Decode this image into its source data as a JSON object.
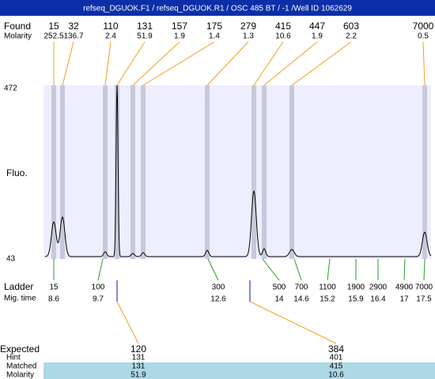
{
  "title": "refseq_DGUOK.F1 / refseq_DGUOK.R1 / OSC 485 BT / -1 /Well ID 1062629",
  "found": {
    "label": "Found",
    "molarity_label": "Molarity",
    "peaks": [
      {
        "size": "15",
        "molarity": "252.5"
      },
      {
        "size": "32",
        "molarity": "136.7"
      },
      {
        "size": "110",
        "molarity": "2.4"
      },
      {
        "size": "131",
        "molarity": "51.9"
      },
      {
        "size": "157",
        "molarity": "1.9"
      },
      {
        "size": "175",
        "molarity": "1.4"
      },
      {
        "size": "279",
        "molarity": "1.3"
      },
      {
        "size": "415",
        "molarity": "10.6"
      },
      {
        "size": "447",
        "molarity": "1.9"
      },
      {
        "size": "603",
        "molarity": "2.2"
      },
      {
        "size": "7000",
        "molarity": "0.5"
      }
    ]
  },
  "plot": {
    "ylabel": "Fluo.",
    "ytop": "472",
    "ybottom": "43"
  },
  "ladder": {
    "label": "Ladder",
    "mig_label": "Mig. time",
    "peaks": [
      {
        "size": "15",
        "time": "8.6"
      },
      {
        "size": "100",
        "time": "9.7"
      },
      {
        "size": "300",
        "time": "12.6"
      },
      {
        "size": "500",
        "time": "14"
      },
      {
        "size": "700",
        "time": "14.6"
      },
      {
        "size": "1100",
        "time": "15.2"
      },
      {
        "size": "1900",
        "time": "15.9"
      },
      {
        "size": "2900",
        "time": "16.4"
      },
      {
        "size": "4900",
        "time": "17"
      },
      {
        "size": "7000",
        "time": "17.5"
      }
    ]
  },
  "table": {
    "labels": [
      "Expected",
      "Hint",
      "Matched",
      "Molarity"
    ],
    "columns": [
      [
        "120",
        "131",
        "131",
        "51.9"
      ],
      [
        "384",
        "401",
        "415",
        "10.6"
      ]
    ]
  }
}
